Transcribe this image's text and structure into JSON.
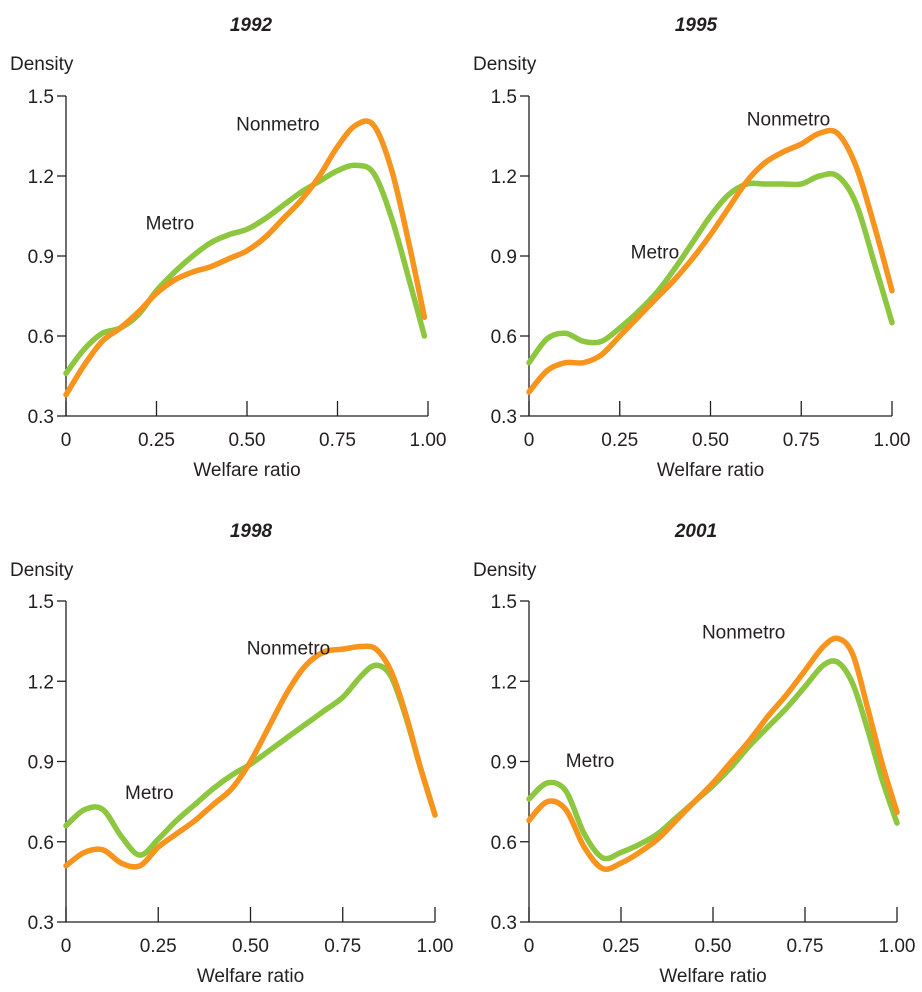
{
  "chart_data": [
    {
      "type": "line",
      "title": "1992",
      "xlabel": "Welfare ratio",
      "ylabel": "Density",
      "xlim": [
        0,
        1
      ],
      "ylim": [
        0.3,
        1.5
      ],
      "xticks": [
        "0",
        "0.25",
        "0.50",
        "0.75",
        "1.00"
      ],
      "yticks": [
        "0.3",
        "0.6",
        "0.9",
        "1.2",
        "1.5"
      ],
      "series": [
        {
          "name": "Metro",
          "color": "#8dc63f",
          "x": [
            0,
            0.05,
            0.1,
            0.15,
            0.2,
            0.25,
            0.3,
            0.35,
            0.4,
            0.45,
            0.5,
            0.55,
            0.6,
            0.65,
            0.7,
            0.75,
            0.8,
            0.85,
            0.9,
            0.95,
            0.99
          ],
          "y": [
            0.46,
            0.55,
            0.61,
            0.63,
            0.68,
            0.77,
            0.84,
            0.9,
            0.95,
            0.98,
            1.0,
            1.04,
            1.09,
            1.14,
            1.18,
            1.22,
            1.24,
            1.21,
            1.04,
            0.8,
            0.6
          ]
        },
        {
          "name": "Nonmetro",
          "color": "#f7941d",
          "x": [
            0,
            0.05,
            0.1,
            0.15,
            0.2,
            0.25,
            0.3,
            0.35,
            0.4,
            0.45,
            0.5,
            0.55,
            0.6,
            0.65,
            0.7,
            0.75,
            0.8,
            0.85,
            0.9,
            0.95,
            0.99
          ],
          "y": [
            0.38,
            0.49,
            0.58,
            0.63,
            0.69,
            0.76,
            0.81,
            0.84,
            0.86,
            0.89,
            0.92,
            0.97,
            1.04,
            1.11,
            1.2,
            1.31,
            1.39,
            1.39,
            1.22,
            0.93,
            0.67
          ]
        }
      ],
      "annotations": [
        {
          "text": "Metro",
          "x": 0.22,
          "y": 1.0
        },
        {
          "text": "Nonmetro",
          "x": 0.47,
          "y": 1.37
        }
      ]
    },
    {
      "type": "line",
      "title": "1995",
      "xlabel": "Welfare ratio",
      "ylabel": "Density",
      "xlim": [
        0,
        1
      ],
      "ylim": [
        0.3,
        1.5
      ],
      "xticks": [
        "0",
        "0.25",
        "0.50",
        "0.75",
        "1.00"
      ],
      "yticks": [
        "0.3",
        "0.6",
        "0.9",
        "1.2",
        "1.5"
      ],
      "series": [
        {
          "name": "Metro",
          "color": "#8dc63f",
          "x": [
            0,
            0.05,
            0.1,
            0.15,
            0.2,
            0.25,
            0.3,
            0.35,
            0.4,
            0.45,
            0.5,
            0.55,
            0.6,
            0.65,
            0.7,
            0.75,
            0.8,
            0.85,
            0.9,
            0.95,
            1.0
          ],
          "y": [
            0.5,
            0.59,
            0.61,
            0.58,
            0.58,
            0.63,
            0.69,
            0.76,
            0.85,
            0.95,
            1.05,
            1.13,
            1.17,
            1.17,
            1.17,
            1.17,
            1.2,
            1.2,
            1.1,
            0.88,
            0.65
          ]
        },
        {
          "name": "Nonmetro",
          "color": "#f7941d",
          "x": [
            0,
            0.05,
            0.1,
            0.15,
            0.2,
            0.25,
            0.3,
            0.35,
            0.4,
            0.45,
            0.5,
            0.55,
            0.6,
            0.65,
            0.7,
            0.75,
            0.8,
            0.85,
            0.9,
            0.95,
            1.0
          ],
          "y": [
            0.39,
            0.47,
            0.5,
            0.5,
            0.53,
            0.6,
            0.67,
            0.74,
            0.81,
            0.89,
            0.98,
            1.08,
            1.18,
            1.25,
            1.29,
            1.32,
            1.36,
            1.36,
            1.24,
            1.02,
            0.77
          ]
        }
      ],
      "annotations": [
        {
          "text": "Metro",
          "x": 0.28,
          "y": 0.89
        },
        {
          "text": "Nonmetro",
          "x": 0.6,
          "y": 1.39
        }
      ]
    },
    {
      "type": "line",
      "title": "1998",
      "xlabel": "Welfare ratio",
      "ylabel": "Density",
      "xlim": [
        0,
        1
      ],
      "ylim": [
        0.3,
        1.5
      ],
      "xticks": [
        "0",
        "0.25",
        "0.50",
        "0.75",
        "1.00"
      ],
      "yticks": [
        "0.3",
        "0.6",
        "0.9",
        "1.2",
        "1.5"
      ],
      "series": [
        {
          "name": "Metro",
          "color": "#8dc63f",
          "x": [
            0,
            0.05,
            0.1,
            0.15,
            0.2,
            0.25,
            0.3,
            0.35,
            0.4,
            0.45,
            0.5,
            0.55,
            0.6,
            0.65,
            0.7,
            0.75,
            0.8,
            0.84,
            0.88,
            0.92,
            0.96,
            1.0
          ],
          "y": [
            0.66,
            0.72,
            0.72,
            0.62,
            0.55,
            0.61,
            0.68,
            0.74,
            0.8,
            0.85,
            0.89,
            0.94,
            0.99,
            1.04,
            1.09,
            1.14,
            1.22,
            1.26,
            1.22,
            1.07,
            0.88,
            0.7
          ]
        },
        {
          "name": "Nonmetro",
          "color": "#f7941d",
          "x": [
            0,
            0.05,
            0.1,
            0.15,
            0.2,
            0.25,
            0.3,
            0.35,
            0.4,
            0.45,
            0.5,
            0.55,
            0.6,
            0.65,
            0.7,
            0.75,
            0.8,
            0.84,
            0.88,
            0.92,
            0.96,
            1.0
          ],
          "y": [
            0.51,
            0.56,
            0.57,
            0.52,
            0.51,
            0.58,
            0.63,
            0.68,
            0.74,
            0.8,
            0.9,
            1.03,
            1.16,
            1.26,
            1.31,
            1.32,
            1.33,
            1.32,
            1.24,
            1.08,
            0.88,
            0.7
          ]
        }
      ],
      "annotations": [
        {
          "text": "Metro",
          "x": 0.16,
          "y": 0.76
        },
        {
          "text": "Nonmetro",
          "x": 0.49,
          "y": 1.3
        }
      ]
    },
    {
      "type": "line",
      "title": "2001",
      "xlabel": "Welfare ratio",
      "ylabel": "Density",
      "xlim": [
        0,
        1
      ],
      "ylim": [
        0.3,
        1.5
      ],
      "xticks": [
        "0",
        "0.25",
        "0.50",
        "0.75",
        "1.00"
      ],
      "yticks": [
        "0.3",
        "0.6",
        "0.9",
        "1.2",
        "1.5"
      ],
      "series": [
        {
          "name": "Metro",
          "color": "#8dc63f",
          "x": [
            0,
            0.05,
            0.1,
            0.15,
            0.2,
            0.25,
            0.3,
            0.35,
            0.4,
            0.45,
            0.5,
            0.55,
            0.6,
            0.65,
            0.7,
            0.75,
            0.8,
            0.84,
            0.88,
            0.92,
            0.96,
            1.0
          ],
          "y": [
            0.76,
            0.82,
            0.79,
            0.63,
            0.54,
            0.56,
            0.59,
            0.63,
            0.69,
            0.75,
            0.81,
            0.88,
            0.96,
            1.03,
            1.1,
            1.18,
            1.26,
            1.27,
            1.19,
            1.02,
            0.83,
            0.67
          ]
        },
        {
          "name": "Nonmetro",
          "color": "#f7941d",
          "x": [
            0,
            0.05,
            0.1,
            0.15,
            0.2,
            0.25,
            0.3,
            0.35,
            0.4,
            0.45,
            0.5,
            0.55,
            0.6,
            0.65,
            0.7,
            0.75,
            0.8,
            0.84,
            0.88,
            0.92,
            0.96,
            1.0
          ],
          "y": [
            0.68,
            0.75,
            0.72,
            0.58,
            0.5,
            0.52,
            0.56,
            0.61,
            0.68,
            0.75,
            0.82,
            0.9,
            0.98,
            1.07,
            1.15,
            1.24,
            1.33,
            1.36,
            1.3,
            1.1,
            0.89,
            0.71
          ]
        }
      ],
      "annotations": [
        {
          "text": "Metro",
          "x": 0.1,
          "y": 0.88
        },
        {
          "text": "Nonmetro",
          "x": 0.47,
          "y": 1.36
        }
      ]
    }
  ]
}
